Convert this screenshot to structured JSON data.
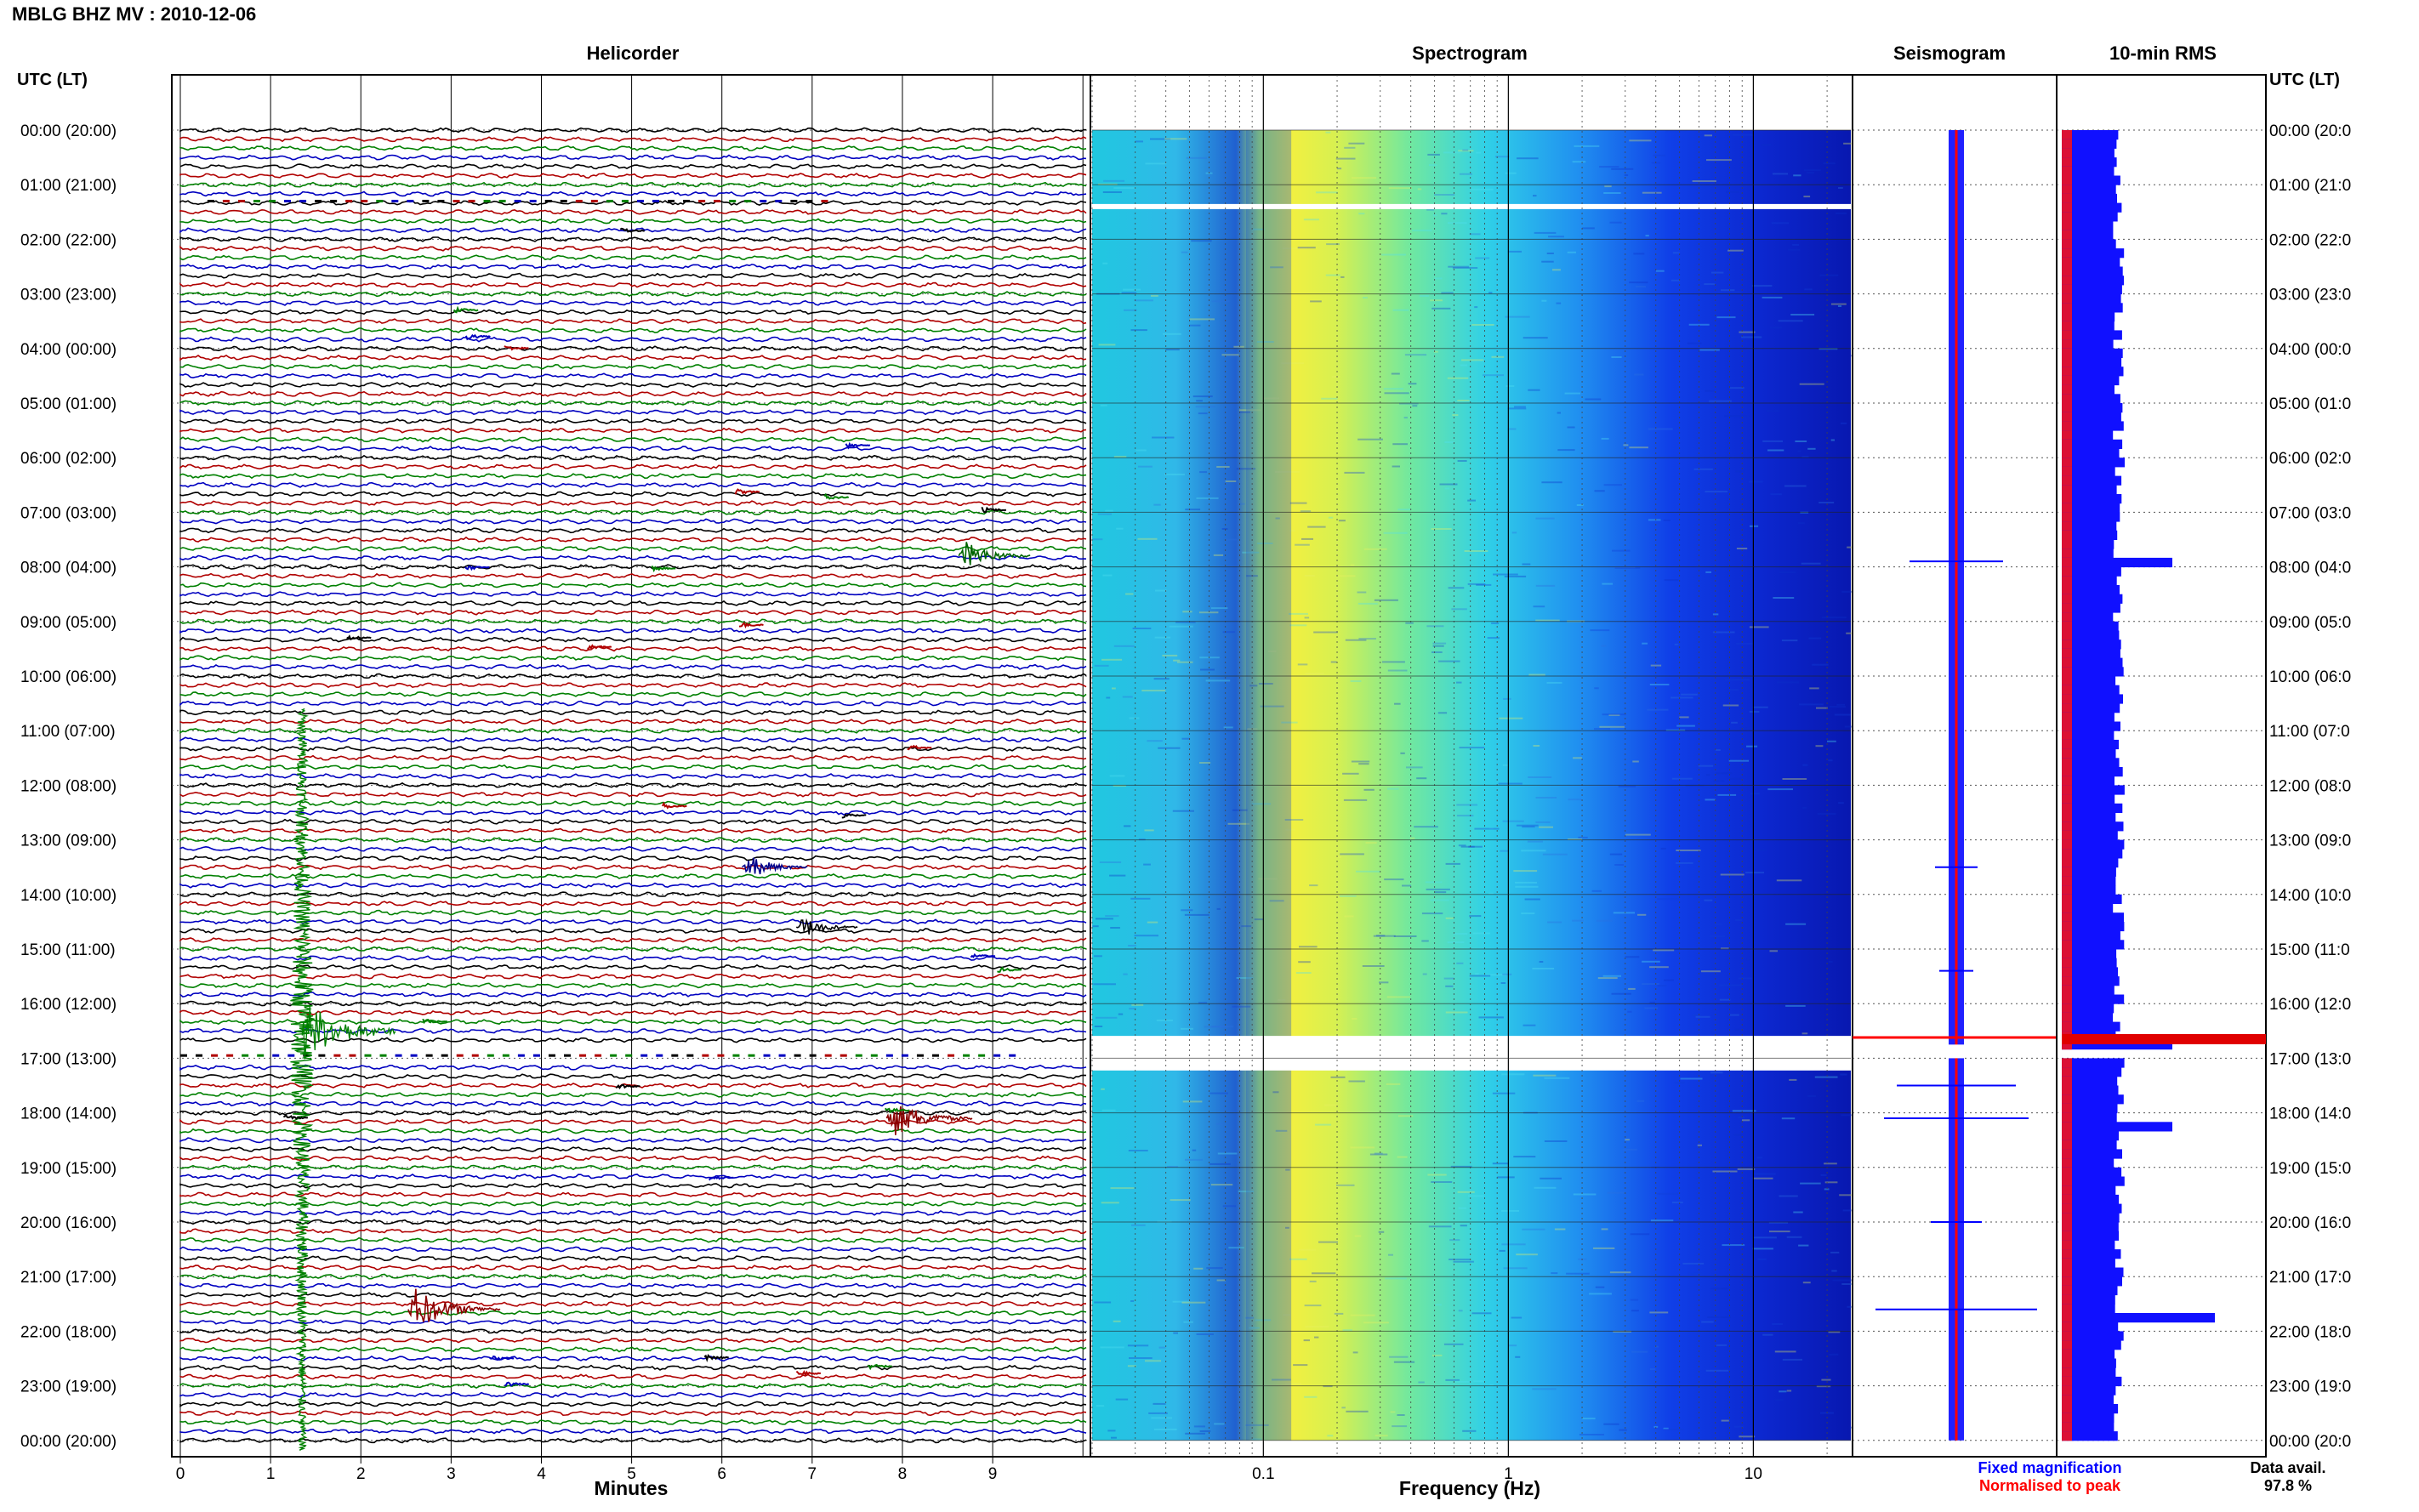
{
  "title": "MBLG BHZ MV : 2010-12-06",
  "panels": {
    "helicorder": "Helicorder",
    "spectrogram": "Spectrogram",
    "seismogram": "Seismogram",
    "rms": "10-min RMS"
  },
  "axis_header_left": "UTC (LT)",
  "axis_header_right": "UTC (LT)",
  "hour_labels": [
    "00:00 (20:00)",
    "01:00 (21:00)",
    "02:00 (22:00)",
    "03:00 (23:00)",
    "04:00 (00:00)",
    "05:00 (01:00)",
    "06:00 (02:00)",
    "07:00 (03:00)",
    "08:00 (04:00)",
    "09:00 (05:00)",
    "10:00 (06:00)",
    "11:00 (07:00)",
    "12:00 (08:00)",
    "13:00 (09:00)",
    "14:00 (10:00)",
    "15:00 (11:00)",
    "16:00 (12:00)",
    "17:00 (13:00)",
    "18:00 (14:00)",
    "19:00 (15:00)",
    "20:00 (16:00)",
    "21:00 (17:00)",
    "22:00 (18:00)",
    "23:00 (19:00)",
    "00:00 (20:00)"
  ],
  "hour_labels_right": [
    "00:00 (20:0",
    "01:00 (21:0",
    "02:00 (22:0",
    "03:00 (23:0",
    "04:00 (00:0",
    "05:00 (01:0",
    "06:00 (02:0",
    "07:00 (03:0",
    "08:00 (04:0",
    "09:00 (05:0",
    "10:00 (06:0",
    "11:00 (07:0",
    "12:00 (08:0",
    "13:00 (09:0",
    "14:00 (10:0",
    "15:00 (11:0",
    "16:00 (12:0",
    "17:00 (13:0",
    "18:00 (14:0",
    "19:00 (15:0",
    "20:00 (16:0",
    "21:00 (17:0",
    "22:00 (18:0",
    "23:00 (19:0",
    "00:00 (20:0"
  ],
  "chart_data": {
    "type": "line",
    "helicorder": {
      "xlabel": "Minutes",
      "xticks": [
        "0",
        "1",
        "2",
        "3",
        "4",
        "5",
        "6",
        "7",
        "8",
        "9"
      ],
      "trace_colors": [
        "#000000",
        "#b00000",
        "#008000",
        "#0000c0"
      ],
      "events": [
        {
          "hour": 16.5,
          "minute": 1.35,
          "color": "#008000",
          "strength": 1.0
        },
        {
          "hour": 21.6,
          "minute": 2.6,
          "color": "#8b0000",
          "strength": 0.35
        },
        {
          "hour": 18.1,
          "minute": 7.9,
          "color": "#8b0000",
          "strength": 0.3
        },
        {
          "hour": 7.8,
          "minute": 8.7,
          "color": "#006400",
          "strength": 0.2
        },
        {
          "hour": 13.5,
          "minute": 6.3,
          "color": "#00008b",
          "strength": 0.15
        },
        {
          "hour": 14.6,
          "minute": 6.9,
          "color": "#000000",
          "strength": 0.12
        }
      ]
    },
    "spectrogram": {
      "xlabel": "Frequency (Hz)",
      "xscale": "log",
      "xlim": [
        0.02,
        25
      ],
      "xticks": [
        "0.1",
        "1",
        "10"
      ],
      "gaps_hours": [
        1.4,
        16.7,
        17.1
      ]
    },
    "seismogram": {
      "series_colors": [
        "#0000ff",
        "#ff0000"
      ],
      "legend": [
        "Fixed magnification",
        "Normalised to peak"
      ]
    },
    "rms": {
      "spikes_hours": [
        7.9,
        16.6,
        18.1,
        21.6
      ],
      "peak_hour": 16.65
    },
    "data_availability": {
      "label": "Data avail.",
      "value": "97.8 %"
    }
  }
}
